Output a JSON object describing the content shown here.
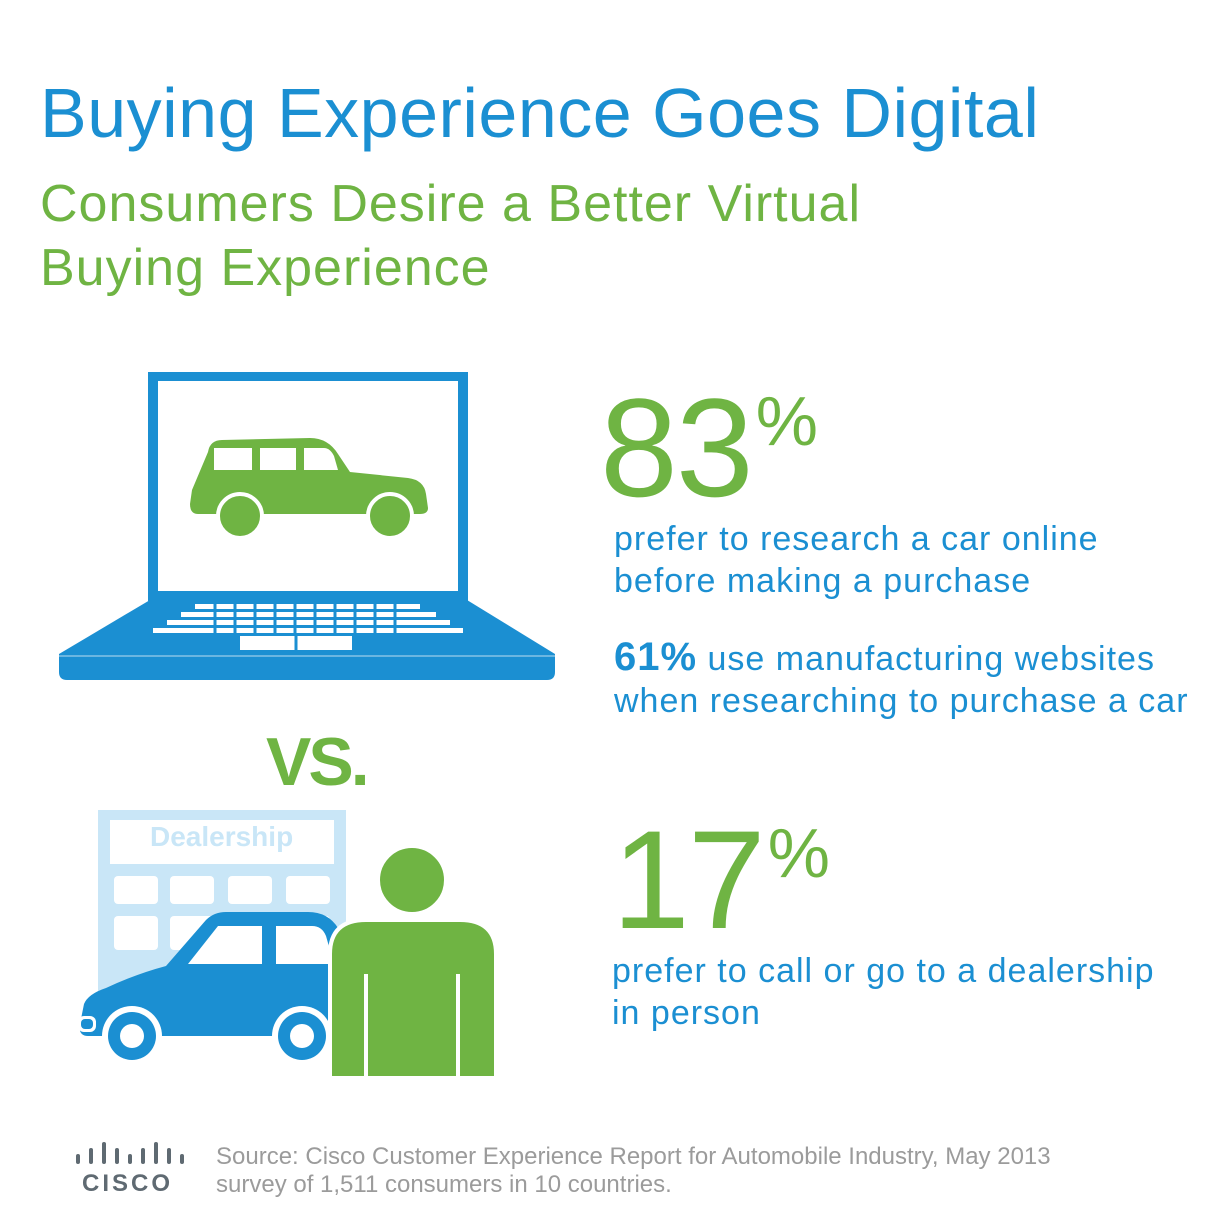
{
  "header": {
    "title": "Buying Experience Goes Digital",
    "subtitle_line1": "Consumers Desire a Better Virtual",
    "subtitle_line2": "Buying Experience"
  },
  "stat_online": {
    "value": "83",
    "unit": "%",
    "line1": "prefer to research a car online",
    "line2": "before making a purchase"
  },
  "stat_websites": {
    "value": "61%",
    "line1_rest": " use manufacturing websites",
    "line2": "when researching to purchase a car"
  },
  "vs_label": "VS.",
  "dealership_sign": "Dealership",
  "stat_dealership": {
    "value": "17",
    "unit": "%",
    "line1": "prefer to call or go to a dealership",
    "line2": "in person"
  },
  "footer": {
    "logo_text": "CISCO",
    "source_line1": "Source: Cisco Customer Experience Report for Automobile Industry, May 2013",
    "source_line2": "survey of 1,511 consumers in 10 countries."
  },
  "colors": {
    "blue": "#1b8fd2",
    "green": "#6fb443",
    "light_blue": "#c9e6f7",
    "gray": "#9b9b9b"
  },
  "icons": [
    "laptop-icon",
    "suv-icon",
    "building-icon",
    "car-icon",
    "person-icon",
    "cisco-logo-icon"
  ]
}
